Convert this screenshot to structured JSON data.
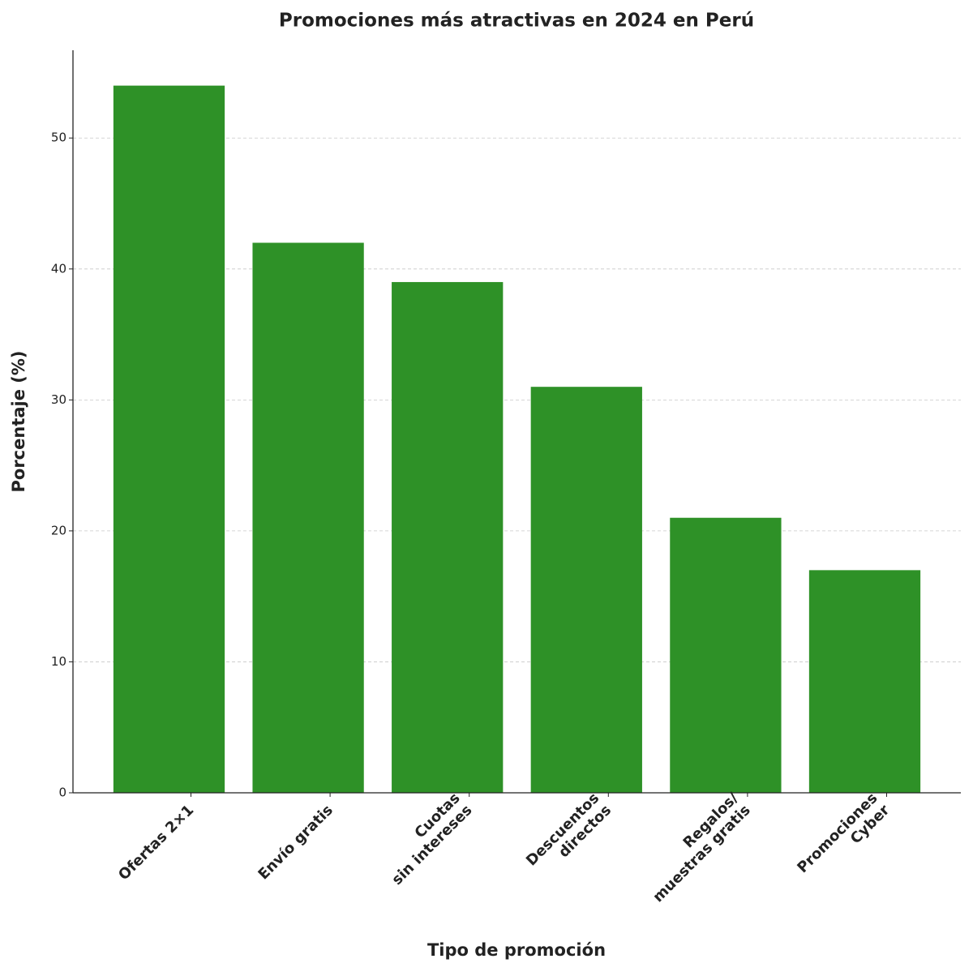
{
  "chart_data": {
    "type": "bar",
    "title": "Promociones más atractivas en 2024 en Perú",
    "x_label": "Tipo de promoción",
    "y_label": "Porcentaje (%)",
    "categories": [
      "Ofertas 2×1",
      "Envío gratis",
      "Cuotas\nsin intereses",
      "Descuentos\ndirectos",
      "Regalos/\nmuestras gratis",
      "Promociones\nCyber"
    ],
    "values": [
      54,
      42,
      39,
      31,
      21,
      17
    ],
    "color": "#2e9127",
    "ylim": [
      0,
      56.7
    ],
    "yticks": [
      0,
      10,
      20,
      30,
      40,
      50
    ],
    "grid": true
  }
}
